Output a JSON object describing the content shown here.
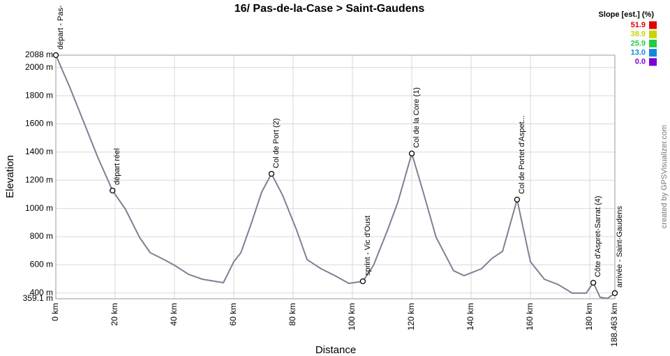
{
  "chart_data": {
    "type": "line",
    "title": "16/ Pas-de-la-Case > Saint-Gaudens",
    "x_label": "Distance",
    "y_label": "Elevation",
    "credit": "created by GPSVisualizer.com",
    "xlim": [
      0,
      188.463
    ],
    "ylim": [
      359.1,
      2088
    ],
    "grid": true,
    "xticks": [
      {
        "value": 0,
        "label": "0 km"
      },
      {
        "value": 20,
        "label": "20 km"
      },
      {
        "value": 40,
        "label": "40 km"
      },
      {
        "value": 60,
        "label": "60 km"
      },
      {
        "value": 80,
        "label": "80 km"
      },
      {
        "value": 100,
        "label": "100 km"
      },
      {
        "value": 120,
        "label": "120 km"
      },
      {
        "value": 140,
        "label": "140 km"
      },
      {
        "value": 160,
        "label": "160 km"
      },
      {
        "value": 180,
        "label": "180 km"
      },
      {
        "value": 188.463,
        "label": "188.463 km"
      }
    ],
    "yticks": [
      {
        "value": 359.1,
        "label": "359.1 m"
      },
      {
        "value": 400,
        "label": "400 m"
      },
      {
        "value": 600,
        "label": "600 m"
      },
      {
        "value": 800,
        "label": "800 m"
      },
      {
        "value": 1000,
        "label": "1000 m"
      },
      {
        "value": 1200,
        "label": "1200 m"
      },
      {
        "value": 1400,
        "label": "1400 m"
      },
      {
        "value": 1600,
        "label": "1600 m"
      },
      {
        "value": 1800,
        "label": "1800 m"
      },
      {
        "value": 2000,
        "label": "2000 m"
      },
      {
        "value": 2088,
        "label": "2088 m"
      }
    ],
    "x": [
      0,
      4.7,
      9.4,
      14.1,
      19.1,
      23.5,
      28.2,
      31.8,
      36.5,
      40,
      44.7,
      49.4,
      56.5,
      60,
      62.4,
      65.9,
      69.4,
      72.7,
      76.5,
      81.2,
      84.7,
      89.4,
      94.1,
      98.8,
      103.5,
      107.1,
      111.8,
      115.3,
      120,
      123.5,
      128.2,
      134.1,
      137.6,
      143.5,
      147.1,
      150.6,
      155.5,
      160,
      164.7,
      169.4,
      174.1,
      178.8,
      181.2,
      183.5,
      186,
      188.463
    ],
    "series": [
      {
        "color": "#7f7f95",
        "values": [
          2088,
          1860,
          1613,
          1365,
          1127,
          993,
          795,
          686,
          637,
          597,
          533,
          498,
          473,
          622,
          686,
          894,
          1117,
          1246,
          1092,
          845,
          637,
          572,
          523,
          468,
          483,
          597,
          845,
          1043,
          1390,
          1142,
          795,
          558,
          523,
          572,
          647,
          696,
          1063,
          622,
          498,
          459,
          399,
          399,
          473,
          369,
          362,
          399
        ]
      }
    ],
    "annotations": [
      {
        "label": "départ - Pas-",
        "x": 0,
        "y": 2088
      },
      {
        "label": "départ réel",
        "x": 19.1,
        "y": 1127
      },
      {
        "label": "Col de Port (2)",
        "x": 72.7,
        "y": 1246
      },
      {
        "label": "sprint - Vic d'Oust",
        "x": 103.5,
        "y": 483
      },
      {
        "label": "Col de la Core (1)",
        "x": 120,
        "y": 1390
      },
      {
        "label": "Col de Portet d'Aspet...",
        "x": 155.5,
        "y": 1063
      },
      {
        "label": "Côte d'Aspret-Sarrat (4)",
        "x": 181.2,
        "y": 473
      },
      {
        "label": "arrivée - Saint-Gaudens",
        "x": 188.463,
        "y": 399
      }
    ],
    "slope_legend": {
      "title": "Slope [est.] (%)",
      "entries": [
        {
          "value": 51.9,
          "color": "#e00000"
        },
        {
          "value": 38.9,
          "color": "#c8d400"
        },
        {
          "value": 25.9,
          "color": "#22cc44"
        },
        {
          "value": 13,
          "label": "13.0",
          "color": "#1188dd"
        },
        {
          "value": 0,
          "label": "0.0",
          "color": "#7a00dd"
        }
      ]
    }
  }
}
